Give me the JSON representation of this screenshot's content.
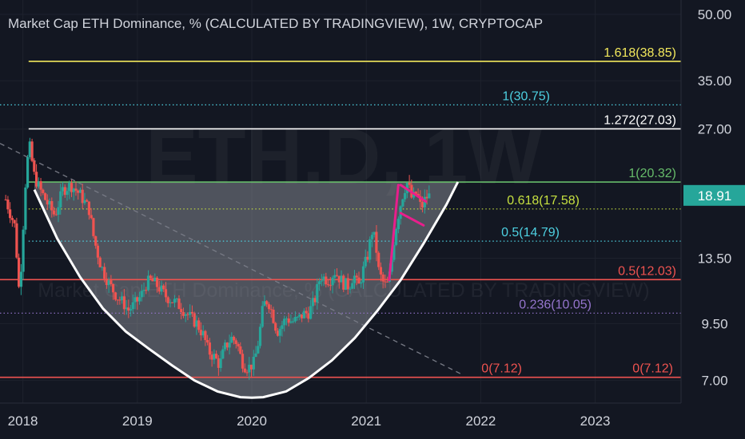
{
  "chart_data": {
    "type": "candlestick",
    "title": "Market Cap ETH Dominance, % (CALCULATED BY TRADINGVIEW), 1W, CRYPTOCAP",
    "watermark": "ETH.D, 1W",
    "watermark_subtitle": "Market Cap ETH Dominance, % (CALCULATED BY TRADINGVIEW)",
    "y_scale": "log",
    "ylim": [
      6.2,
      54
    ],
    "xlim": [
      2017.8,
      2023.75
    ],
    "y_ticks": [
      "50.00",
      "35.00",
      "27.00",
      "13.50",
      "9.50",
      "7.00"
    ],
    "y_tick_values": [
      50,
      35,
      27,
      13.5,
      9.5,
      7
    ],
    "x_ticks": [
      "2018",
      "2019",
      "2020",
      "2021",
      "2022",
      "2023"
    ],
    "x_tick_values": [
      2018.0,
      2019.0,
      2020.0,
      2021.0,
      2022.0,
      2023.0
    ],
    "current_price": {
      "label": "18.91",
      "value": 18.91,
      "color": "#26a69a"
    },
    "fib_levels": [
      {
        "label": "1.618(38.85)",
        "value": 38.85,
        "color": "#f2e85c",
        "style": "solid",
        "x_start": 2018.05
      },
      {
        "label": "1(30.75)",
        "value": 30.75,
        "color": "#4dd0e1",
        "style": "dotted",
        "x_start": 2017.8
      },
      {
        "label": "1.272(27.03)",
        "value": 27.03,
        "color": "#ffffff",
        "style": "solid",
        "x_start": 2018.05
      },
      {
        "label": "1(20.32)",
        "value": 20.32,
        "color": "#66bb6a",
        "style": "solid",
        "x_start": 2018.05
      },
      {
        "label": "0.618(17.58)",
        "value": 17.58,
        "color": "#c6e040",
        "style": "dotted",
        "x_start": 2018.05
      },
      {
        "label": "0.5(14.79)",
        "value": 14.79,
        "color": "#4dd0e1",
        "style": "dotted",
        "x_start": 2018.05
      },
      {
        "label": "0.5(12.03)",
        "value": 12.03,
        "color": "#ef5350",
        "style": "solid",
        "x_start": 2017.8
      },
      {
        "label": "0.236(10.05)",
        "value": 10.05,
        "color": "#9575cd",
        "style": "dotted",
        "x_start": 2017.8
      },
      {
        "label": "0(7.12)",
        "value": 7.12,
        "color": "#ef5350",
        "style": "solid",
        "x_start": 2017.8
      }
    ],
    "extra_labels": [
      {
        "text": "0(7.12)",
        "x": 2021.92,
        "value": 7.12,
        "color": "#ef5350"
      }
    ],
    "price_path": [
      [
        2017.85,
        18.5
      ],
      [
        2017.93,
        16.0
      ],
      [
        2017.97,
        11.0
      ],
      [
        2018.03,
        22.0
      ],
      [
        2018.06,
        24.5
      ],
      [
        2018.1,
        21.0
      ],
      [
        2018.15,
        19.5
      ],
      [
        2018.22,
        18.0
      ],
      [
        2018.28,
        17.0
      ],
      [
        2018.35,
        19.5
      ],
      [
        2018.42,
        20.0
      ],
      [
        2018.5,
        19.0
      ],
      [
        2018.58,
        17.5
      ],
      [
        2018.62,
        15.0
      ],
      [
        2018.68,
        13.0
      ],
      [
        2018.75,
        11.8
      ],
      [
        2018.82,
        11.0
      ],
      [
        2018.88,
        10.6
      ],
      [
        2018.92,
        10.2
      ],
      [
        2018.97,
        10.5
      ],
      [
        2019.03,
        11.0
      ],
      [
        2019.08,
        11.8
      ],
      [
        2019.12,
        12.0
      ],
      [
        2019.18,
        11.6
      ],
      [
        2019.25,
        11.0
      ],
      [
        2019.32,
        10.7
      ],
      [
        2019.38,
        10.4
      ],
      [
        2019.45,
        9.9
      ],
      [
        2019.52,
        9.5
      ],
      [
        2019.58,
        8.9
      ],
      [
        2019.62,
        8.2
      ],
      [
        2019.68,
        7.9
      ],
      [
        2019.72,
        7.6
      ],
      [
        2019.76,
        8.3
      ],
      [
        2019.82,
        8.8
      ],
      [
        2019.87,
        8.6
      ],
      [
        2019.9,
        8.0
      ],
      [
        2019.93,
        7.6
      ],
      [
        2019.97,
        7.5
      ],
      [
        2020.02,
        7.7
      ],
      [
        2020.06,
        8.7
      ],
      [
        2020.1,
        10.5
      ],
      [
        2020.14,
        10.8
      ],
      [
        2020.18,
        10.0
      ],
      [
        2020.22,
        9.1
      ],
      [
        2020.26,
        9.4
      ],
      [
        2020.3,
        9.8
      ],
      [
        2020.35,
        9.6
      ],
      [
        2020.4,
        9.7
      ],
      [
        2020.45,
        10.0
      ],
      [
        2020.5,
        10.1
      ],
      [
        2020.55,
        10.8
      ],
      [
        2020.6,
        12.3
      ],
      [
        2020.64,
        12.1
      ],
      [
        2020.68,
        12.0
      ],
      [
        2020.72,
        12.6
      ],
      [
        2020.76,
        12.2
      ],
      [
        2020.8,
        11.8
      ],
      [
        2020.85,
        11.6
      ],
      [
        2020.89,
        12.4
      ],
      [
        2020.93,
        11.5
      ],
      [
        2020.97,
        12.6
      ],
      [
        2021.01,
        13.6
      ],
      [
        2021.05,
        15.6
      ],
      [
        2021.08,
        14.8
      ],
      [
        2021.11,
        12.5
      ],
      [
        2021.15,
        11.8
      ],
      [
        2021.18,
        11.6
      ],
      [
        2021.21,
        12.5
      ],
      [
        2021.25,
        15.5
      ],
      [
        2021.29,
        17.6
      ],
      [
        2021.33,
        19.5
      ],
      [
        2021.36,
        20.3
      ],
      [
        2021.4,
        18.5
      ],
      [
        2021.44,
        19.2
      ],
      [
        2021.48,
        17.6
      ],
      [
        2021.52,
        18.7
      ],
      [
        2021.56,
        18.9
      ]
    ],
    "cup_curve": [
      [
        2018.1,
        19.5
      ],
      [
        2018.3,
        15.0
      ],
      [
        2018.5,
        12.2
      ],
      [
        2018.7,
        10.3
      ],
      [
        2018.9,
        9.1
      ],
      [
        2019.1,
        8.3
      ],
      [
        2019.3,
        7.6
      ],
      [
        2019.5,
        7.0
      ],
      [
        2019.7,
        6.6
      ],
      [
        2019.9,
        6.4
      ],
      [
        2020.0,
        6.38
      ],
      [
        2020.1,
        6.4
      ],
      [
        2020.3,
        6.6
      ],
      [
        2020.5,
        7.1
      ],
      [
        2020.7,
        7.8
      ],
      [
        2020.9,
        8.8
      ],
      [
        2021.1,
        10.2
      ],
      [
        2021.3,
        12.0
      ],
      [
        2021.5,
        14.6
      ],
      [
        2021.7,
        18.0
      ],
      [
        2021.8,
        20.32
      ]
    ],
    "trendline": [
      [
        2017.8,
        25.0
      ],
      [
        2021.85,
        7.2
      ]
    ],
    "flagpole": [
      [
        2021.2,
        12.0
      ],
      [
        2021.28,
        20.0
      ]
    ],
    "flag_top": [
      [
        2021.3,
        20.0
      ],
      [
        2021.52,
        18.3
      ]
    ],
    "flag_bottom": [
      [
        2021.3,
        17.2
      ],
      [
        2021.5,
        16.1
      ]
    ],
    "colors": {
      "up": "#26a69a",
      "down": "#ef5350",
      "background": "#131722",
      "grid": "#1e222d",
      "text": "#d1d4dc",
      "pattern": "#e91e8c"
    }
  }
}
